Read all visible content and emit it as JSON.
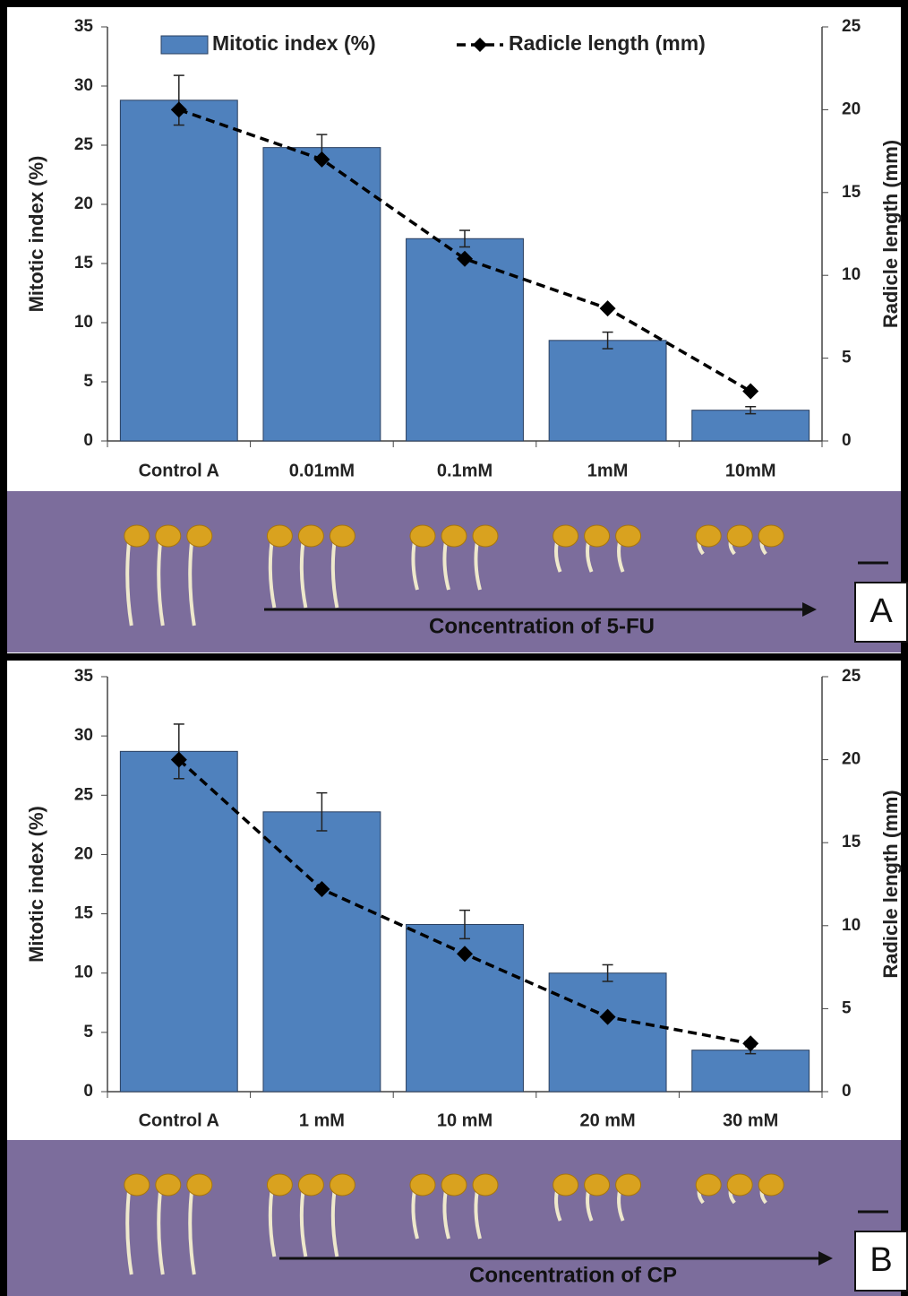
{
  "chart_data": [
    {
      "type": "bar_line",
      "categories": [
        "Control A",
        "0.01mM",
        "0.1mM",
        "1mM",
        "10mM"
      ],
      "series": [
        {
          "name": "Mitotic index (%)",
          "color": "#4f81bd",
          "values": [
            28.8,
            24.8,
            17.1,
            8.5,
            2.6
          ],
          "errors": [
            2.1,
            1.1,
            0.7,
            0.7,
            0.3
          ]
        },
        {
          "name": "Radicle length (mm)",
          "color": "#000000",
          "axis": "y2",
          "values": [
            20.0,
            17.0,
            11.0,
            8.0,
            3.0
          ]
        }
      ],
      "ylabel": "Mitotic index (%)",
      "y2label": "Radicle length (mm)",
      "ylim": [
        0,
        35
      ],
      "yticks": [
        0,
        5,
        10,
        15,
        20,
        25,
        30,
        35
      ],
      "y2lim": [
        0,
        25
      ],
      "y2ticks": [
        0,
        5,
        10,
        15,
        20,
        25
      ],
      "legend": "top",
      "photo_caption": "Concentration of 5-FU",
      "panel_label": "A"
    },
    {
      "type": "bar_line",
      "categories": [
        "Control A",
        "1 mM",
        "10 mM",
        "20 mM",
        "30 mM"
      ],
      "series": [
        {
          "color": "#4f81bd",
          "values": [
            28.7,
            23.6,
            14.1,
            10.0,
            3.5
          ],
          "errors": [
            2.3,
            1.6,
            1.2,
            0.7,
            0.3
          ]
        },
        {
          "color": "#000000",
          "axis": "y2",
          "values": [
            20.0,
            12.2,
            8.3,
            4.5,
            2.9
          ]
        }
      ],
      "ylabel": "Mitotic index (%)",
      "y2label": "Radicle length (mm)",
      "ylim": [
        0,
        35
      ],
      "yticks": [
        0,
        5,
        10,
        15,
        20,
        25,
        30,
        35
      ],
      "y2lim": [
        0,
        25
      ],
      "y2ticks": [
        0,
        5,
        10,
        15,
        20,
        25
      ],
      "photo_caption": "Concentration of CP",
      "panel_label": "B"
    }
  ]
}
